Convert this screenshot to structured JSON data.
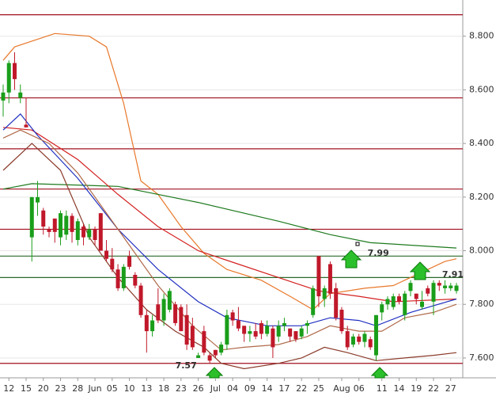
{
  "chart_data": {
    "type": "candlestick",
    "ylim": [
      7.526,
      8.935
    ],
    "xlim": [
      -0.55,
      80.1
    ],
    "yticks": [
      {
        "value": 7.6,
        "label": "7.600"
      },
      {
        "value": 7.8,
        "label": "7.800"
      },
      {
        "value": 8.0,
        "label": "8.000"
      },
      {
        "value": 8.2,
        "label": "8.200"
      },
      {
        "value": 8.4,
        "label": "8.400"
      },
      {
        "value": 8.6,
        "label": "8.600"
      },
      {
        "value": 8.8,
        "label": "8.800"
      }
    ],
    "xticks": [
      {
        "value": 1,
        "label": "12"
      },
      {
        "value": 4,
        "label": "15"
      },
      {
        "value": 7,
        "label": "20"
      },
      {
        "value": 10,
        "label": "23"
      },
      {
        "value": 13,
        "label": "28"
      },
      {
        "value": 16,
        "label": "Jun"
      },
      {
        "value": 19,
        "label": "05"
      },
      {
        "value": 22,
        "label": "10"
      },
      {
        "value": 25,
        "label": "13"
      },
      {
        "value": 28,
        "label": "18"
      },
      {
        "value": 31,
        "label": "23"
      },
      {
        "value": 34,
        "label": "26"
      },
      {
        "value": 37,
        "label": "Jul"
      },
      {
        "value": 40,
        "label": "04"
      },
      {
        "value": 43,
        "label": "09"
      },
      {
        "value": 46,
        "label": "14"
      },
      {
        "value": 49,
        "label": "17"
      },
      {
        "value": 52,
        "label": "22"
      },
      {
        "value": 55,
        "label": "25"
      },
      {
        "value": 59,
        "label": "Aug"
      },
      {
        "value": 62,
        "label": "06"
      },
      {
        "value": 66,
        "label": "11"
      },
      {
        "value": 69,
        "label": "14"
      },
      {
        "value": 72,
        "label": "19"
      },
      {
        "value": 75,
        "label": "22"
      },
      {
        "value": 78,
        "label": "27"
      }
    ],
    "grid": true,
    "up_color": "#1a9e1a",
    "down_color": "#c0182a",
    "candles": [
      [
        8.56,
        8.62,
        8.5,
        8.59
      ],
      [
        8.59,
        8.71,
        8.55,
        8.7
      ],
      [
        8.7,
        8.74,
        8.6,
        8.64
      ],
      [
        8.57,
        8.62,
        8.55,
        8.59
      ],
      [
        8.47,
        8.57,
        8.46,
        8.46
      ],
      [
        8.05,
        8.2,
        7.96,
        8.2
      ],
      [
        8.18,
        8.26,
        8.13,
        8.2
      ],
      [
        8.15,
        8.16,
        8.06,
        8.09
      ],
      [
        8.08,
        8.09,
        8.05,
        8.07
      ],
      [
        8.12,
        8.12,
        8.03,
        8.07
      ],
      [
        8.05,
        8.15,
        8.02,
        8.14
      ],
      [
        8.06,
        8.15,
        8.04,
        8.13
      ],
      [
        8.13,
        8.14,
        8.03,
        8.07
      ],
      [
        8.04,
        8.12,
        8.02,
        8.11
      ],
      [
        8.09,
        8.1,
        8.02,
        8.05
      ],
      [
        8.05,
        8.1,
        8.04,
        8.08
      ],
      [
        8.08,
        8.09,
        8.02,
        8.04
      ],
      [
        8.14,
        8.14,
        8.0,
        8.0
      ],
      [
        8.0,
        8.04,
        7.96,
        7.97
      ],
      [
        7.97,
        8.01,
        7.92,
        7.93
      ],
      [
        7.93,
        7.95,
        7.85,
        7.86
      ],
      [
        7.86,
        7.95,
        7.85,
        7.94
      ],
      [
        7.98,
        8.0,
        7.93,
        7.94
      ],
      [
        7.91,
        7.92,
        7.86,
        7.87
      ],
      [
        7.87,
        7.88,
        7.75,
        7.76
      ],
      [
        7.76,
        7.78,
        7.62,
        7.7
      ],
      [
        7.7,
        7.76,
        7.68,
        7.74
      ],
      [
        7.8,
        7.86,
        7.73,
        7.74
      ],
      [
        7.74,
        7.84,
        7.72,
        7.82
      ],
      [
        7.78,
        7.86,
        7.77,
        7.85
      ],
      [
        7.8,
        7.81,
        7.72,
        7.73
      ],
      [
        7.79,
        7.8,
        7.7,
        7.7
      ],
      [
        7.76,
        7.8,
        7.63,
        7.65
      ],
      [
        7.72,
        7.75,
        7.63,
        7.64
      ],
      [
        7.6,
        7.62,
        7.6,
        7.61
      ],
      [
        7.7,
        7.72,
        7.61,
        7.62
      ],
      [
        7.61,
        7.62,
        7.58,
        7.59
      ],
      [
        7.63,
        7.63,
        7.6,
        7.61
      ],
      [
        7.62,
        7.66,
        7.61,
        7.65
      ],
      [
        7.65,
        7.78,
        7.63,
        7.76
      ],
      [
        7.77,
        7.78,
        7.72,
        7.74
      ],
      [
        7.74,
        7.79,
        7.7,
        7.71
      ],
      [
        7.72,
        7.72,
        7.66,
        7.69
      ],
      [
        7.69,
        7.72,
        7.66,
        7.7
      ],
      [
        7.7,
        7.73,
        7.67,
        7.68
      ],
      [
        7.73,
        7.74,
        7.67,
        7.69
      ],
      [
        7.69,
        7.74,
        7.68,
        7.72
      ],
      [
        7.71,
        7.72,
        7.6,
        7.64
      ],
      [
        7.68,
        7.74,
        7.66,
        7.72
      ],
      [
        7.72,
        7.75,
        7.7,
        7.73
      ],
      [
        7.71,
        7.71,
        7.66,
        7.68
      ],
      [
        7.7,
        7.7,
        7.66,
        7.67
      ],
      [
        7.68,
        7.72,
        7.67,
        7.71
      ],
      [
        7.72,
        7.74,
        7.69,
        7.73
      ],
      [
        7.76,
        7.87,
        7.75,
        7.86
      ],
      [
        7.98,
        7.98,
        7.79,
        7.83
      ],
      [
        7.82,
        7.87,
        7.79,
        7.86
      ],
      [
        7.95,
        7.96,
        7.82,
        7.84
      ],
      [
        7.86,
        7.88,
        7.74,
        7.75
      ],
      [
        7.78,
        7.79,
        7.69,
        7.7
      ],
      [
        7.7,
        7.72,
        7.63,
        7.64
      ],
      [
        7.65,
        7.69,
        7.64,
        7.68
      ],
      [
        7.68,
        7.69,
        7.65,
        7.66
      ],
      [
        7.66,
        7.7,
        7.64,
        7.69
      ],
      [
        7.67,
        7.68,
        7.63,
        7.64
      ],
      [
        7.61,
        7.76,
        7.59,
        7.76
      ],
      [
        7.77,
        7.81,
        7.74,
        7.8
      ],
      [
        7.8,
        7.83,
        7.78,
        7.82
      ],
      [
        7.79,
        7.84,
        7.78,
        7.83
      ],
      [
        7.83,
        7.84,
        7.8,
        7.81
      ],
      [
        7.76,
        7.85,
        7.74,
        7.84
      ],
      [
        7.85,
        7.89,
        7.83,
        7.88
      ],
      [
        7.84,
        7.84,
        7.8,
        7.82
      ],
      [
        7.79,
        7.85,
        7.78,
        7.81
      ],
      [
        7.86,
        7.87,
        7.83,
        7.84
      ],
      [
        7.81,
        7.89,
        7.76,
        7.88
      ],
      [
        7.88,
        7.89,
        7.85,
        7.87
      ],
      [
        7.86,
        7.89,
        7.84,
        7.87
      ],
      [
        7.86,
        7.88,
        7.85,
        7.87
      ],
      [
        7.85,
        7.88,
        7.84,
        7.87
      ]
    ],
    "levels": [
      {
        "value": 8.88,
        "color": "#a01020"
      },
      {
        "value": 8.57,
        "color": "#a01020"
      },
      {
        "value": 8.38,
        "color": "#a01020"
      },
      {
        "value": 8.23,
        "color": "#a01020"
      },
      {
        "value": 8.08,
        "color": "#a01020"
      },
      {
        "value": 7.98,
        "color": "#2a6a2a"
      },
      {
        "value": 7.9,
        "color": "#2a6a2a"
      },
      {
        "value": 7.58,
        "color": "#a01020"
      }
    ],
    "lines": [
      {
        "color": "#e8782a",
        "x": [
          0,
          2,
          9,
          15,
          18,
          21,
          24,
          27,
          31,
          35,
          39,
          45,
          50,
          54,
          57,
          63,
          68,
          73,
          77,
          79
        ],
        "values": [
          8.71,
          8.76,
          8.81,
          8.8,
          8.76,
          8.55,
          8.26,
          8.21,
          8.09,
          7.99,
          7.93,
          7.89,
          7.83,
          7.78,
          7.84,
          7.86,
          7.87,
          7.92,
          7.96,
          7.97
        ]
      },
      {
        "color": "#1e7a1e",
        "x": [
          0,
          5,
          20,
          34,
          48,
          57,
          64,
          79
        ],
        "values": [
          8.23,
          8.25,
          8.24,
          8.18,
          8.11,
          8.06,
          8.03,
          8.01
        ]
      },
      {
        "color": "#d42020",
        "x": [
          0,
          5,
          13,
          20,
          27,
          34,
          41,
          48,
          55,
          62,
          68,
          79
        ],
        "values": [
          8.46,
          8.45,
          8.34,
          8.21,
          8.09,
          8.0,
          7.95,
          7.9,
          7.85,
          7.83,
          7.81,
          7.82
        ]
      },
      {
        "color": "#2030c0",
        "x": [
          0,
          3,
          6,
          13,
          20,
          27,
          34,
          39,
          46,
          52,
          57,
          62,
          65,
          71,
          79
        ],
        "values": [
          8.45,
          8.51,
          8.43,
          8.27,
          8.08,
          7.93,
          7.81,
          7.75,
          7.72,
          7.72,
          7.75,
          7.74,
          7.72,
          7.77,
          7.82
        ]
      },
      {
        "color": "#b06a4a",
        "x": [
          0,
          3,
          8,
          13,
          20,
          27,
          33,
          38,
          42,
          48,
          53,
          57,
          62,
          66,
          70,
          75,
          79
        ],
        "values": [
          8.42,
          8.45,
          8.4,
          8.29,
          8.08,
          7.87,
          7.72,
          7.63,
          7.64,
          7.65,
          7.68,
          7.72,
          7.7,
          7.7,
          7.75,
          7.77,
          7.8
        ]
      },
      {
        "color": "#8a3a2a",
        "x": [
          0,
          5,
          10,
          15,
          20,
          25,
          30,
          35,
          38,
          42,
          48,
          52,
          56,
          60,
          65,
          70,
          75,
          79
        ],
        "values": [
          8.3,
          8.4,
          8.3,
          8.05,
          7.9,
          7.78,
          7.7,
          7.64,
          7.58,
          7.56,
          7.58,
          7.6,
          7.64,
          7.62,
          7.59,
          7.6,
          7.61,
          7.62
        ]
      }
    ],
    "annotations": [
      {
        "text": "7.57",
        "x": 30,
        "value": 7.57,
        "color": "#8a1020"
      },
      {
        "text": "7.99",
        "x": 63.5,
        "value": 7.99,
        "color": "#1a7a1a"
      },
      {
        "text": "7.91",
        "x": 76.5,
        "value": 7.91,
        "color": "#1a7a1a"
      }
    ]
  }
}
